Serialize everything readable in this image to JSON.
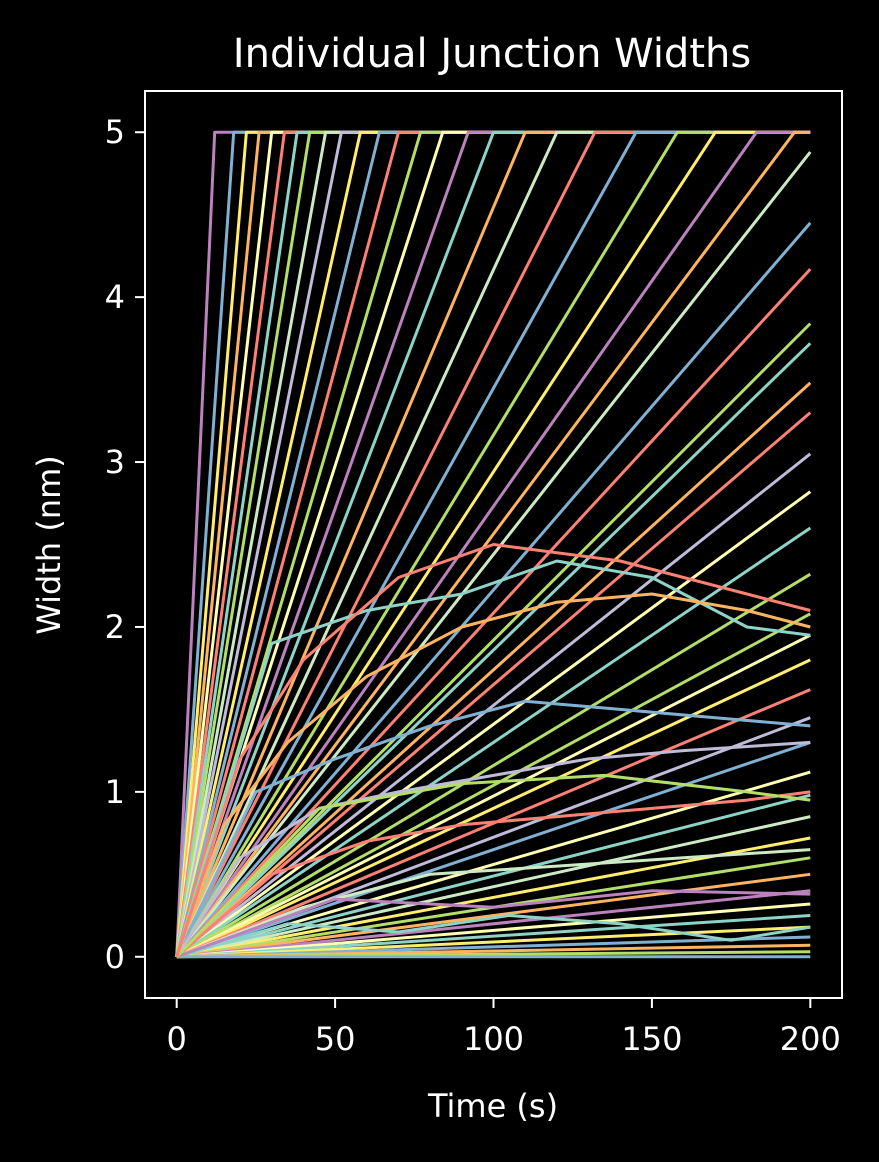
{
  "chart_data": {
    "type": "line",
    "title": "Individual Junction Widths",
    "xlabel": "Time (s)",
    "ylabel": "Width (nm)",
    "xlim": [
      -10,
      210
    ],
    "ylim": [
      -0.25,
      5.25
    ],
    "xticks": [
      0,
      50,
      100,
      150,
      200
    ],
    "xtick_labels": [
      "0",
      "50",
      "100",
      "150",
      "200"
    ],
    "yticks": [
      0,
      1,
      2,
      3,
      4,
      5
    ],
    "ytick_labels": [
      "0",
      "1",
      "2",
      "3",
      "4",
      "5"
    ],
    "grid": false,
    "legend": "none",
    "background": "#000000",
    "foreground": "#ffffff",
    "palette": [
      "#8dd3c7",
      "#feffb3",
      "#bfbbd9",
      "#fa8174",
      "#81b1d2",
      "#fdb462",
      "#b3de69",
      "#bc82bd",
      "#ccebc4",
      "#ffed6f"
    ],
    "saturation_width": 5,
    "series": [
      {
        "x": [
          0,
          12,
          200
        ],
        "y": [
          0,
          5,
          5
        ],
        "color": "#bc82bd"
      },
      {
        "x": [
          0,
          18,
          200
        ],
        "y": [
          0,
          5,
          5
        ],
        "color": "#81b1d2"
      },
      {
        "x": [
          0,
          22,
          200
        ],
        "y": [
          0,
          5,
          5
        ],
        "color": "#ffed6f"
      },
      {
        "x": [
          0,
          26,
          200
        ],
        "y": [
          0,
          5,
          5
        ],
        "color": "#fdb462"
      },
      {
        "x": [
          0,
          30,
          200
        ],
        "y": [
          0,
          5,
          5
        ],
        "color": "#feffb3"
      },
      {
        "x": [
          0,
          34,
          200
        ],
        "y": [
          0,
          5,
          5
        ],
        "color": "#fa8174"
      },
      {
        "x": [
          0,
          38,
          200
        ],
        "y": [
          0,
          5,
          5
        ],
        "color": "#8dd3c7"
      },
      {
        "x": [
          0,
          42,
          200
        ],
        "y": [
          0,
          5,
          5
        ],
        "color": "#b3de69"
      },
      {
        "x": [
          0,
          47,
          200
        ],
        "y": [
          0,
          5,
          5
        ],
        "color": "#ccebc4"
      },
      {
        "x": [
          0,
          52,
          200
        ],
        "y": [
          0,
          5,
          5
        ],
        "color": "#bfbbd9"
      },
      {
        "x": [
          0,
          58,
          200
        ],
        "y": [
          0,
          5,
          5
        ],
        "color": "#ffed6f"
      },
      {
        "x": [
          0,
          64,
          200
        ],
        "y": [
          0,
          5,
          5
        ],
        "color": "#81b1d2"
      },
      {
        "x": [
          0,
          70,
          200
        ],
        "y": [
          0,
          5,
          5
        ],
        "color": "#fa8174"
      },
      {
        "x": [
          0,
          77,
          200
        ],
        "y": [
          0,
          5,
          5
        ],
        "color": "#b3de69"
      },
      {
        "x": [
          0,
          84,
          200
        ],
        "y": [
          0,
          5,
          5
        ],
        "color": "#feffb3"
      },
      {
        "x": [
          0,
          92,
          200
        ],
        "y": [
          0,
          5,
          5
        ],
        "color": "#bc82bd"
      },
      {
        "x": [
          0,
          100,
          200
        ],
        "y": [
          0,
          5,
          5
        ],
        "color": "#8dd3c7"
      },
      {
        "x": [
          0,
          110,
          200
        ],
        "y": [
          0,
          5,
          5
        ],
        "color": "#fdb462"
      },
      {
        "x": [
          0,
          120,
          200
        ],
        "y": [
          0,
          5,
          5
        ],
        "color": "#ccebc4"
      },
      {
        "x": [
          0,
          132,
          200
        ],
        "y": [
          0,
          5,
          5
        ],
        "color": "#fa8174"
      },
      {
        "x": [
          0,
          145,
          200
        ],
        "y": [
          0,
          5,
          5
        ],
        "color": "#81b1d2"
      },
      {
        "x": [
          0,
          158,
          200
        ],
        "y": [
          0,
          5,
          5
        ],
        "color": "#b3de69"
      },
      {
        "x": [
          0,
          170,
          200
        ],
        "y": [
          0,
          5,
          5
        ],
        "color": "#ffed6f"
      },
      {
        "x": [
          0,
          183,
          200
        ],
        "y": [
          0,
          5,
          5
        ],
        "color": "#bc82bd"
      },
      {
        "x": [
          0,
          195,
          200
        ],
        "y": [
          0,
          5,
          5
        ],
        "color": "#fdb462"
      },
      {
        "x": [
          0,
          200
        ],
        "y": [
          0,
          4.88
        ],
        "color": "#ccebc4"
      },
      {
        "x": [
          0,
          200
        ],
        "y": [
          0,
          4.45
        ],
        "color": "#81b1d2"
      },
      {
        "x": [
          0,
          200
        ],
        "y": [
          0,
          4.17
        ],
        "color": "#fa8174"
      },
      {
        "x": [
          0,
          200
        ],
        "y": [
          0,
          3.84
        ],
        "color": "#b3de69"
      },
      {
        "x": [
          0,
          200
        ],
        "y": [
          0,
          3.72
        ],
        "color": "#8dd3c7"
      },
      {
        "x": [
          0,
          200
        ],
        "y": [
          0,
          3.48
        ],
        "color": "#fdb462"
      },
      {
        "x": [
          0,
          200
        ],
        "y": [
          0,
          3.3
        ],
        "color": "#fa8174"
      },
      {
        "x": [
          0,
          200
        ],
        "y": [
          0,
          3.05
        ],
        "color": "#bfbbd9"
      },
      {
        "x": [
          0,
          200
        ],
        "y": [
          0,
          2.82
        ],
        "color": "#feffb3"
      },
      {
        "x": [
          0,
          200
        ],
        "y": [
          0,
          2.6
        ],
        "color": "#8dd3c7"
      },
      {
        "x": [
          0,
          200
        ],
        "y": [
          0,
          2.32
        ],
        "color": "#b3de69"
      },
      {
        "x": [
          0,
          200
        ],
        "y": [
          0,
          2.08
        ],
        "color": "#b3de69"
      },
      {
        "x": [
          0,
          200
        ],
        "y": [
          0,
          1.95
        ],
        "color": "#feffb3"
      },
      {
        "x": [
          0,
          200
        ],
        "y": [
          0,
          1.8
        ],
        "color": "#ffed6f"
      },
      {
        "x": [
          0,
          200
        ],
        "y": [
          0,
          1.62
        ],
        "color": "#fa8174"
      },
      {
        "x": [
          0,
          200
        ],
        "y": [
          0,
          1.45
        ],
        "color": "#bfbbd9"
      },
      {
        "x": [
          0,
          200
        ],
        "y": [
          0,
          1.3
        ],
        "color": "#81b1d2"
      },
      {
        "x": [
          0,
          200
        ],
        "y": [
          0,
          1.12
        ],
        "color": "#feffb3"
      },
      {
        "x": [
          0,
          200
        ],
        "y": [
          0,
          0.98
        ],
        "color": "#8dd3c7"
      },
      {
        "x": [
          0,
          200
        ],
        "y": [
          0,
          0.85
        ],
        "color": "#ccebc4"
      },
      {
        "x": [
          0,
          200
        ],
        "y": [
          0,
          0.72
        ],
        "color": "#ffed6f"
      },
      {
        "x": [
          0,
          200
        ],
        "y": [
          0,
          0.6
        ],
        "color": "#b3de69"
      },
      {
        "x": [
          0,
          200
        ],
        "y": [
          0,
          0.5
        ],
        "color": "#fdb462"
      },
      {
        "x": [
          0,
          200
        ],
        "y": [
          0,
          0.4
        ],
        "color": "#bc82bd"
      },
      {
        "x": [
          0,
          200
        ],
        "y": [
          0,
          0.32
        ],
        "color": "#feffb3"
      },
      {
        "x": [
          0,
          200
        ],
        "y": [
          0,
          0.25
        ],
        "color": "#8dd3c7"
      },
      {
        "x": [
          0,
          200
        ],
        "y": [
          0,
          0.18
        ],
        "color": "#ffed6f"
      },
      {
        "x": [
          0,
          200
        ],
        "y": [
          0,
          0.12
        ],
        "color": "#81b1d2"
      },
      {
        "x": [
          0,
          200
        ],
        "y": [
          0,
          0.07
        ],
        "color": "#fdb462"
      },
      {
        "x": [
          0,
          200
        ],
        "y": [
          0,
          0.03
        ],
        "color": "#b3de69"
      },
      {
        "x": [
          0,
          200
        ],
        "y": [
          0,
          0.0
        ],
        "color": "#81b1d2"
      },
      {
        "x": [
          0,
          30,
          60,
          90,
          120,
          150,
          180,
          200
        ],
        "y": [
          0,
          1.9,
          2.1,
          2.2,
          2.4,
          2.3,
          2.0,
          1.95
        ],
        "color": "#8dd3c7"
      },
      {
        "x": [
          0,
          25,
          50,
          80,
          110,
          140,
          170,
          200
        ],
        "y": [
          0,
          1.0,
          1.2,
          1.4,
          1.55,
          1.5,
          1.45,
          1.4
        ],
        "color": "#81b1d2"
      },
      {
        "x": [
          0,
          20,
          45,
          70,
          100,
          130,
          160,
          200
        ],
        "y": [
          0,
          0.6,
          0.9,
          1.0,
          1.1,
          1.2,
          1.25,
          1.3
        ],
        "color": "#bfbbd9"
      },
      {
        "x": [
          0,
          30,
          60,
          90,
          120,
          150,
          180,
          200
        ],
        "y": [
          0,
          0.5,
          0.7,
          0.8,
          0.85,
          0.9,
          0.95,
          1.0
        ],
        "color": "#fa8174"
      },
      {
        "x": [
          0,
          40,
          80,
          120,
          160,
          200
        ],
        "y": [
          0,
          0.3,
          0.5,
          0.55,
          0.6,
          0.65
        ],
        "color": "#ccebc4"
      },
      {
        "x": [
          0,
          35,
          70,
          105,
          140,
          175,
          200
        ],
        "y": [
          0,
          0.2,
          0.15,
          0.25,
          0.2,
          0.1,
          0.18
        ],
        "color": "#8dd3c7"
      },
      {
        "x": [
          0,
          50,
          100,
          150,
          200
        ],
        "y": [
          0,
          0.35,
          0.3,
          0.4,
          0.38
        ],
        "color": "#bc82bd"
      },
      {
        "x": [
          0,
          45,
          90,
          135,
          180,
          200
        ],
        "y": [
          0,
          0.9,
          1.05,
          1.1,
          1.0,
          0.95
        ],
        "color": "#b3de69"
      },
      {
        "x": [
          0,
          15,
          35,
          60,
          90,
          120,
          150,
          180,
          200
        ],
        "y": [
          0,
          0.8,
          1.3,
          1.7,
          2.0,
          2.15,
          2.2,
          2.1,
          2.0
        ],
        "color": "#fdb462"
      },
      {
        "x": [
          0,
          20,
          40,
          70,
          100,
          140,
          180,
          200
        ],
        "y": [
          0,
          1.2,
          1.8,
          2.3,
          2.5,
          2.4,
          2.2,
          2.1
        ],
        "color": "#fa8174"
      }
    ]
  }
}
